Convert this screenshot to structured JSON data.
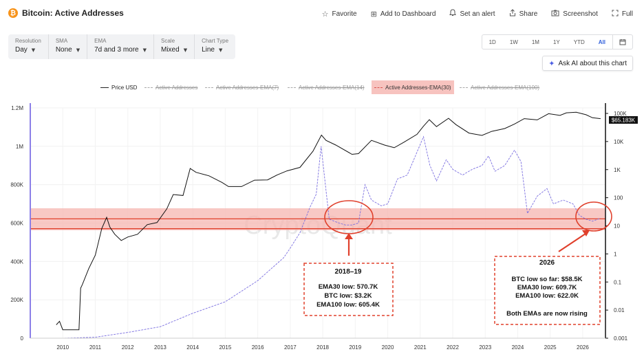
{
  "header": {
    "title": "Bitcoin: Active Addresses",
    "actions": [
      {
        "label": "Favorite",
        "icon": "star-icon",
        "glyph": "☆"
      },
      {
        "label": "Add to Dashboard",
        "icon": "dashboard-icon",
        "glyph": "⊞"
      },
      {
        "label": "Set an alert",
        "icon": "bell-icon",
        "glyph": "♫"
      },
      {
        "label": "Share",
        "icon": "share-icon",
        "glyph": "⇪"
      },
      {
        "label": "Screenshot",
        "icon": "camera-icon",
        "glyph": "◙"
      },
      {
        "label": "Full",
        "icon": "fullscreen-icon",
        "glyph": "⛶"
      }
    ]
  },
  "controls": [
    {
      "label": "Resolution",
      "value": "Day"
    },
    {
      "label": "SMA",
      "value": "None"
    },
    {
      "label": "EMA",
      "value": "7d and 3 more"
    },
    {
      "label": "Scale",
      "value": "Mixed"
    },
    {
      "label": "Chart Type",
      "value": "Line"
    }
  ],
  "ranges": [
    "1D",
    "1W",
    "1M",
    "1Y",
    "YTD",
    "All"
  ],
  "active_range": "All",
  "ask_ai": "Ask AI about this chart",
  "legend": [
    {
      "label": "Price USD",
      "state": "on"
    },
    {
      "label": "Active Addresses",
      "state": "off"
    },
    {
      "label": "Active Addresses-EMA(7)",
      "state": "off"
    },
    {
      "label": "Active Addresses-EMA(14)",
      "state": "off"
    },
    {
      "label": "Active Addresses-EMA(30)",
      "state": "highlighted"
    },
    {
      "label": "Active Addresses-EMA(100)",
      "state": "off"
    }
  ],
  "price_badge": "$65.183K",
  "watermark": "CryptoQuant",
  "annotations": {
    "left": {
      "title": "2018–19",
      "lines": [
        "EMA30 low: 570.7K",
        "BTC low: $3.2K",
        "EMA100 low: 605.4K"
      ]
    },
    "right": {
      "title": "2026",
      "lines": [
        "BTC low so far: $58.5K",
        "EMA30 low: 609.7K",
        "EMA100 low: 622.0K",
        "",
        "Both EMAs are now rising"
      ]
    }
  },
  "colors": {
    "price": "#111111",
    "ema30": "#7b6fe0",
    "band_fill": "#f6b6b0",
    "band_edge": "#e0402c",
    "annotation_border": "#e0402c",
    "accent": "#2f5fdb"
  },
  "chart_data": {
    "type": "line",
    "x_ticks": [
      "2010",
      "2011",
      "2012",
      "2013",
      "2014",
      "2015",
      "2016",
      "2017",
      "2018",
      "2019",
      "2020",
      "2021",
      "2022",
      "2023",
      "2024",
      "2025",
      "2026"
    ],
    "y_left_ticks": [
      "1.2M",
      "1M",
      "800K",
      "600K",
      "400K",
      "200K",
      "0"
    ],
    "y_left_range": [
      0,
      1200000
    ],
    "y_right_ticks": [
      "100K",
      "10K",
      "1K",
      "100",
      "10",
      "1",
      "0.1",
      "0.01",
      "0.001"
    ],
    "y_right_range": [
      0.001,
      100000
    ],
    "y_right_scale": "log",
    "band": [
      570700,
      622000
    ],
    "series": [
      {
        "name": "Price USD",
        "axis": "right",
        "x": [
          2009.8,
          2009.9,
          2010.0,
          2010.5,
          2010.55,
          2010.6,
          2010.8,
          2011.0,
          2011.2,
          2011.35,
          2011.45,
          2011.6,
          2011.8,
          2012.0,
          2012.3,
          2012.6,
          2012.9,
          2013.2,
          2013.4,
          2013.7,
          2013.92,
          2014.1,
          2014.5,
          2014.9,
          2015.1,
          2015.5,
          2015.9,
          2016.3,
          2016.6,
          2016.9,
          2017.3,
          2017.7,
          2017.96,
          2018.1,
          2018.4,
          2018.9,
          2019.1,
          2019.5,
          2019.9,
          2020.2,
          2020.5,
          2020.9,
          2021.1,
          2021.28,
          2021.5,
          2021.87,
          2022.1,
          2022.5,
          2022.9,
          2023.2,
          2023.6,
          2023.9,
          2024.2,
          2024.6,
          2024.95,
          2025.3,
          2025.5,
          2025.8,
          2026.1,
          2026.3,
          2026.55
        ],
        "values": [
          0.003,
          0.004,
          0.002,
          0.002,
          0.06,
          0.08,
          0.3,
          0.9,
          8,
          20,
          9,
          5,
          3,
          4,
          5,
          11,
          13,
          40,
          130,
          120,
          1100,
          800,
          600,
          350,
          250,
          250,
          420,
          430,
          650,
          900,
          1200,
          4500,
          17000,
          11000,
          7500,
          3500,
          3700,
          11000,
          7500,
          6000,
          9500,
          18000,
          35000,
          60000,
          34000,
          67000,
          40000,
          20000,
          16500,
          23000,
          29000,
          42000,
          65000,
          59000,
          98000,
          85000,
          105000,
          110000,
          90000,
          70000,
          65183
        ]
      },
      {
        "name": "Active Addresses-EMA(30)",
        "axis": "left",
        "x": [
          2009.0,
          2010.0,
          2011.0,
          2012.0,
          2013.0,
          2014.0,
          2015.0,
          2016.0,
          2016.8,
          2017.0,
          2017.3,
          2017.6,
          2017.8,
          2017.95,
          2018.2,
          2018.5,
          2018.7,
          2018.9,
          2019.1,
          2019.3,
          2019.5,
          2019.8,
          2020.0,
          2020.3,
          2020.6,
          2020.9,
          2021.1,
          2021.3,
          2021.5,
          2021.8,
          2022.0,
          2022.3,
          2022.6,
          2022.9,
          2023.1,
          2023.3,
          2023.6,
          2023.9,
          2024.1,
          2024.3,
          2024.6,
          2024.9,
          2025.1,
          2025.4,
          2025.7,
          2025.9,
          2026.1,
          2026.3,
          2026.55
        ],
        "values": [
          0,
          0,
          5000,
          30000,
          60000,
          130000,
          190000,
          300000,
          420000,
          470000,
          550000,
          680000,
          750000,
          1000000,
          620000,
          600000,
          590000,
          590000,
          600000,
          800000,
          720000,
          690000,
          700000,
          830000,
          850000,
          970000,
          1050000,
          900000,
          820000,
          930000,
          880000,
          850000,
          880000,
          900000,
          950000,
          870000,
          900000,
          980000,
          920000,
          650000,
          740000,
          780000,
          700000,
          720000,
          700000,
          640000,
          620000,
          609700,
          625000
        ]
      }
    ]
  }
}
